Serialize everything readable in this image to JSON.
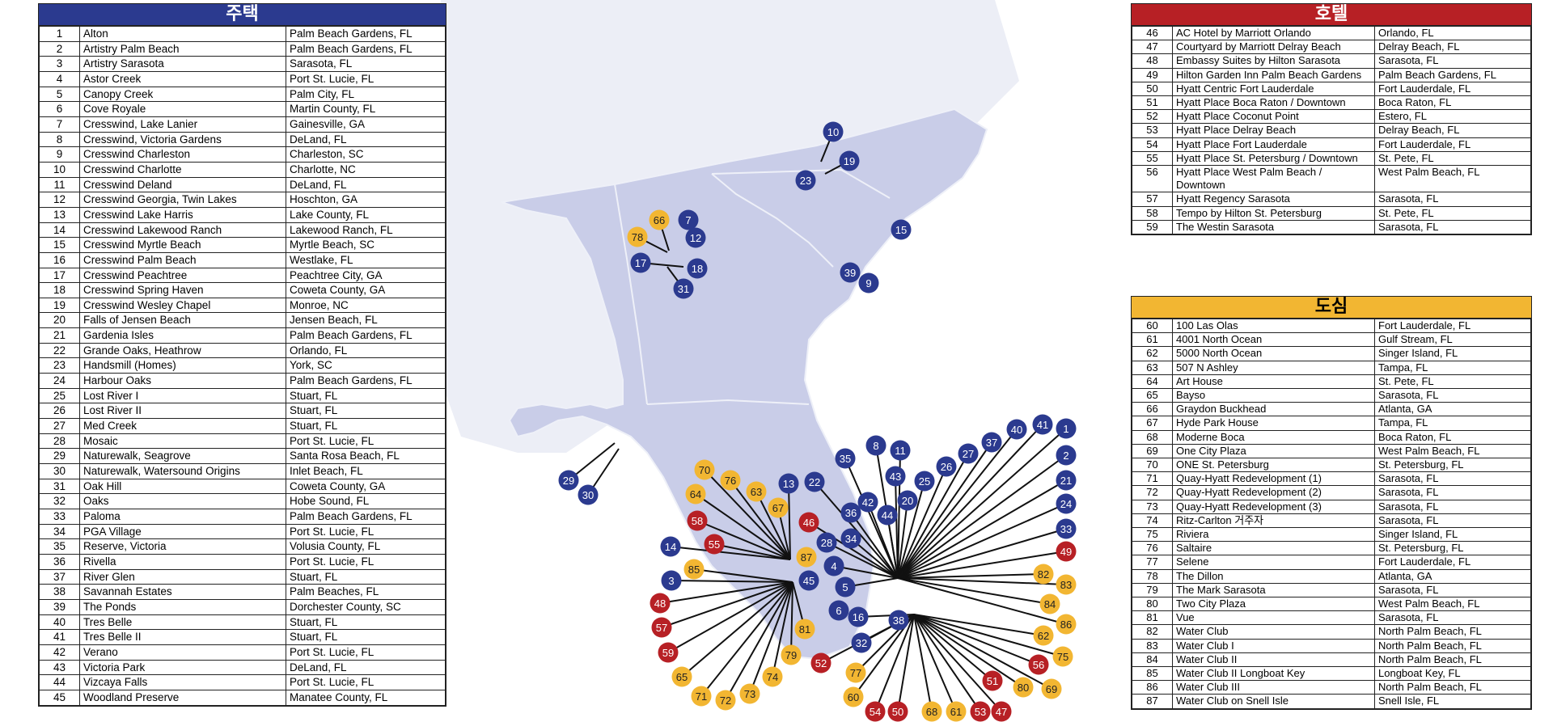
{
  "colors": {
    "residential": "#2b3a8f",
    "hotel": "#b72025",
    "urban": "#f2b632",
    "map_land": "#c9cde8",
    "map_fill": "#e4e7f3",
    "line": "#111111"
  },
  "residential": {
    "title": "주택",
    "rows": [
      [
        "1",
        "Alton",
        "Palm Beach Gardens, FL"
      ],
      [
        "2",
        "Artistry Palm Beach",
        "Palm Beach Gardens, FL"
      ],
      [
        "3",
        "Artistry Sarasota",
        "Sarasota, FL"
      ],
      [
        "4",
        "Astor Creek",
        "Port St. Lucie, FL"
      ],
      [
        "5",
        "Canopy Creek",
        "Palm City, FL"
      ],
      [
        "6",
        "Cove Royale",
        "Martin County, FL"
      ],
      [
        "7",
        "Cresswind, Lake Lanier",
        "Gainesville, GA"
      ],
      [
        "8",
        "Cresswind, Victoria Gardens",
        "DeLand, FL"
      ],
      [
        "9",
        "Cresswind Charleston",
        "Charleston, SC"
      ],
      [
        "10",
        "Cresswind Charlotte",
        "Charlotte, NC"
      ],
      [
        "11",
        "Cresswind Deland",
        "DeLand, FL"
      ],
      [
        "12",
        "Cresswind Georgia, Twin Lakes",
        "Hoschton, GA"
      ],
      [
        "13",
        "Cresswind Lake Harris",
        "Lake County, FL"
      ],
      [
        "14",
        "Cresswind Lakewood Ranch",
        "Lakewood Ranch, FL"
      ],
      [
        "15",
        "Cresswind Myrtle Beach",
        "Myrtle Beach, SC"
      ],
      [
        "16",
        "Cresswind Palm Beach",
        "Westlake, FL"
      ],
      [
        "17",
        "Cresswind Peachtree",
        "Peachtree City, GA"
      ],
      [
        "18",
        "Cresswind Spring Haven",
        "Coweta County, GA"
      ],
      [
        "19",
        "Cresswind Wesley Chapel",
        "Monroe, NC"
      ],
      [
        "20",
        "Falls of Jensen Beach",
        "Jensen Beach, FL"
      ],
      [
        "21",
        "Gardenia Isles",
        "Palm Beach Gardens, FL"
      ],
      [
        "22",
        "Grande Oaks, Heathrow",
        "Orlando, FL"
      ],
      [
        "23",
        "Handsmill (Homes)",
        "York, SC"
      ],
      [
        "24",
        "Harbour Oaks",
        "Palm Beach Gardens, FL"
      ],
      [
        "25",
        "Lost River I",
        "Stuart, FL"
      ],
      [
        "26",
        "Lost River II",
        "Stuart, FL"
      ],
      [
        "27",
        "Med Creek",
        "Stuart, FL"
      ],
      [
        "28",
        "Mosaic",
        "Port St. Lucie, FL"
      ],
      [
        "29",
        "Naturewalk, Seagrove",
        "Santa Rosa Beach, FL"
      ],
      [
        "30",
        "Naturewalk, Watersound Origins",
        "Inlet Beach, FL"
      ],
      [
        "31",
        "Oak Hill",
        "Coweta County, GA"
      ],
      [
        "32",
        "Oaks",
        "Hobe Sound, FL"
      ],
      [
        "33",
        "Paloma",
        "Palm Beach Gardens, FL"
      ],
      [
        "34",
        "PGA Village",
        "Port St. Lucie, FL"
      ],
      [
        "35",
        "Reserve, Victoria",
        "Volusia County, FL"
      ],
      [
        "36",
        "Rivella",
        "Port St. Lucie, FL"
      ],
      [
        "37",
        "River Glen",
        "Stuart, FL"
      ],
      [
        "38",
        "Savannah Estates",
        "Palm Beaches, FL"
      ],
      [
        "39",
        "The Ponds",
        "Dorchester County, SC"
      ],
      [
        "40",
        "Tres Belle",
        "Stuart, FL"
      ],
      [
        "41",
        "Tres Belle II",
        "Stuart, FL"
      ],
      [
        "42",
        "Verano",
        "Port St. Lucie, FL"
      ],
      [
        "43",
        "Victoria Park",
        "DeLand, FL"
      ],
      [
        "44",
        "Vizcaya Falls",
        "Port St. Lucie, FL"
      ],
      [
        "45",
        "Woodland Preserve",
        "Manatee County, FL"
      ]
    ]
  },
  "hotel": {
    "title": "호텔",
    "rows": [
      [
        "46",
        "AC Hotel by Marriott Orlando",
        "Orlando, FL"
      ],
      [
        "47",
        "Courtyard by Marriott Delray Beach",
        "Delray Beach, FL"
      ],
      [
        "48",
        "Embassy Suites by Hilton Sarasota",
        "Sarasota, FL"
      ],
      [
        "49",
        "Hilton Garden Inn Palm Beach Gardens",
        "Palm Beach Gardens, FL"
      ],
      [
        "50",
        "Hyatt Centric Fort Lauderdale",
        "Fort Lauderdale, FL"
      ],
      [
        "51",
        "Hyatt Place Boca Raton / Downtown",
        "Boca Raton, FL"
      ],
      [
        "52",
        "Hyatt Place Coconut Point",
        "Estero, FL"
      ],
      [
        "53",
        "Hyatt Place Delray Beach",
        "Delray Beach, FL"
      ],
      [
        "54",
        "Hyatt Place Fort Lauderdale",
        "Fort Lauderdale, FL"
      ],
      [
        "55",
        "Hyatt Place St. Petersburg / Downtown",
        "St. Pete, FL"
      ],
      [
        "56",
        "Hyatt Place West Palm Beach / Downtown",
        "West Palm Beach, FL"
      ],
      [
        "57",
        "Hyatt Regency Sarasota",
        "Sarasota, FL"
      ],
      [
        "58",
        "Tempo by Hilton St. Petersburg",
        "St. Pete, FL"
      ],
      [
        "59",
        "The Westin Sarasota",
        "Sarasota, FL"
      ]
    ]
  },
  "urban": {
    "title": "도심",
    "rows": [
      [
        "60",
        "100 Las Olas",
        "Fort Lauderdale, FL"
      ],
      [
        "61",
        "4001 North Ocean",
        "Gulf Stream, FL"
      ],
      [
        "62",
        "5000 North Ocean",
        "Singer Island, FL"
      ],
      [
        "63",
        "507 N Ashley",
        "Tampa, FL"
      ],
      [
        "64",
        "Art House",
        "St. Pete, FL"
      ],
      [
        "65",
        "Bayso",
        "Sarasota, FL"
      ],
      [
        "66",
        "Graydon Buckhead",
        "Atlanta, GA"
      ],
      [
        "67",
        "Hyde Park House",
        "Tampa, FL"
      ],
      [
        "68",
        "Moderne Boca",
        "Boca Raton, FL"
      ],
      [
        "69",
        "One City Plaza",
        "West Palm Beach, FL"
      ],
      [
        "70",
        "ONE St. Petersburg",
        "St. Petersburg, FL"
      ],
      [
        "71",
        "Quay-Hyatt Redevelopment (1)",
        "Sarasota, FL"
      ],
      [
        "72",
        "Quay-Hyatt Redevelopment (2)",
        "Sarasota, FL"
      ],
      [
        "73",
        "Quay-Hyatt Redevelopment (3)",
        "Sarasota, FL"
      ],
      [
        "74",
        "Ritz-Carlton 거주자",
        "Sarasota, FL"
      ],
      [
        "75",
        "Riviera",
        "Singer Island, FL"
      ],
      [
        "76",
        "Saltaire",
        "St. Petersburg, FL"
      ],
      [
        "77",
        "Selene",
        "Fort Lauderdale, FL"
      ],
      [
        "78",
        "The Dillon",
        "Atlanta, GA"
      ],
      [
        "79",
        "The Mark Sarasota",
        "Sarasota, FL"
      ],
      [
        "80",
        "Two City Plaza",
        "West Palm Beach, FL"
      ],
      [
        "81",
        "Vue",
        "Sarasota, FL"
      ],
      [
        "82",
        "Water Club",
        "North Palm Beach, FL"
      ],
      [
        "83",
        "Water Club I",
        "North Palm Beach, FL"
      ],
      [
        "84",
        "Water Club II",
        "North Palm Beach, FL"
      ],
      [
        "85",
        "Water Club II Longboat Key",
        "Longboat Key, FL"
      ],
      [
        "86",
        "Water Club III",
        "North Palm Beach, FL"
      ],
      [
        "87",
        "Water Club on Snell Isle",
        "Snell Isle, FL"
      ]
    ]
  },
  "map_labels": [
    "1",
    "2",
    "3",
    "4",
    "5",
    "6",
    "7",
    "8",
    "9",
    "10",
    "11",
    "12",
    "13",
    "14",
    "15",
    "16",
    "17",
    "18",
    "19",
    "20",
    "21",
    "22",
    "23",
    "24",
    "25",
    "26",
    "27",
    "28",
    "29",
    "30",
    "31",
    "32",
    "33",
    "34",
    "35",
    "36",
    "37",
    "38",
    "39",
    "40",
    "41",
    "42",
    "43",
    "44",
    "45",
    "46",
    "47",
    "48",
    "49",
    "50",
    "51",
    "52",
    "53",
    "54",
    "55",
    "56",
    "57",
    "58",
    "59",
    "60",
    "61",
    "62",
    "63",
    "64",
    "65",
    "66",
    "67",
    "68",
    "69",
    "70",
    "71",
    "72",
    "73",
    "74",
    "75",
    "76",
    "77",
    "78",
    "79",
    "80",
    "81",
    "82",
    "83",
    "84",
    "85",
    "86",
    "87"
  ]
}
